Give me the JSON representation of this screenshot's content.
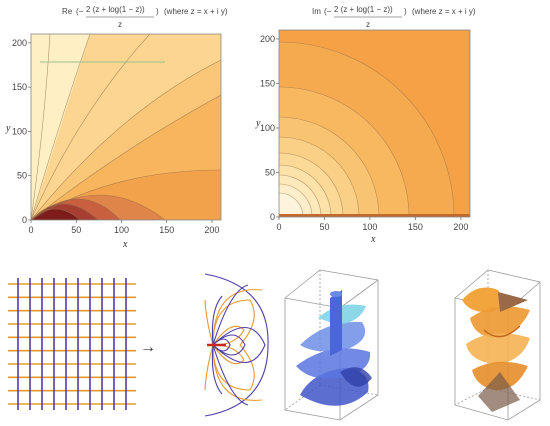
{
  "chart_data": [
    {
      "type": "contour",
      "title": {
        "fn": "Re",
        "numerator": "2 (z + log(1 − z))",
        "denominator": "z",
        "note": "(where z = x + i y)"
      },
      "xlabel": "x",
      "ylabel": "y",
      "xlim": [
        0,
        210
      ],
      "ylim": [
        0,
        210
      ],
      "xticks": [
        0,
        50,
        100,
        150,
        200
      ],
      "yticks": [
        0,
        50,
        100,
        150,
        200
      ],
      "palette": [
        "#7e1c1c",
        "#a73e32",
        "#c85f3f",
        "#e0854a",
        "#f3a24c",
        "#f7bb64",
        "#fbd387",
        "#fde4a6"
      ]
    },
    {
      "type": "contour",
      "title": {
        "fn": "Im",
        "numerator": "2 (z + log(1 − z))",
        "denominator": "z",
        "note": "(where z = x + i y)"
      },
      "xlabel": "x",
      "ylabel": "y",
      "xlim": [
        0,
        210
      ],
      "ylim": [
        0,
        210
      ],
      "xticks": [
        0,
        50,
        100,
        150,
        200
      ],
      "yticks": [
        0,
        50,
        100,
        150,
        200
      ],
      "palette": [
        "#f5a145",
        "#f7b35a",
        "#f9c675",
        "#fbd793",
        "#fde6b2",
        "#fef2d2"
      ]
    }
  ],
  "diagrams": {
    "arrow": "→",
    "colors": {
      "orange": "#e69a2e",
      "purple": "#4f3ea8",
      "surface_blue": "#4a66d8",
      "surface_orange": "#ef9a34"
    }
  }
}
